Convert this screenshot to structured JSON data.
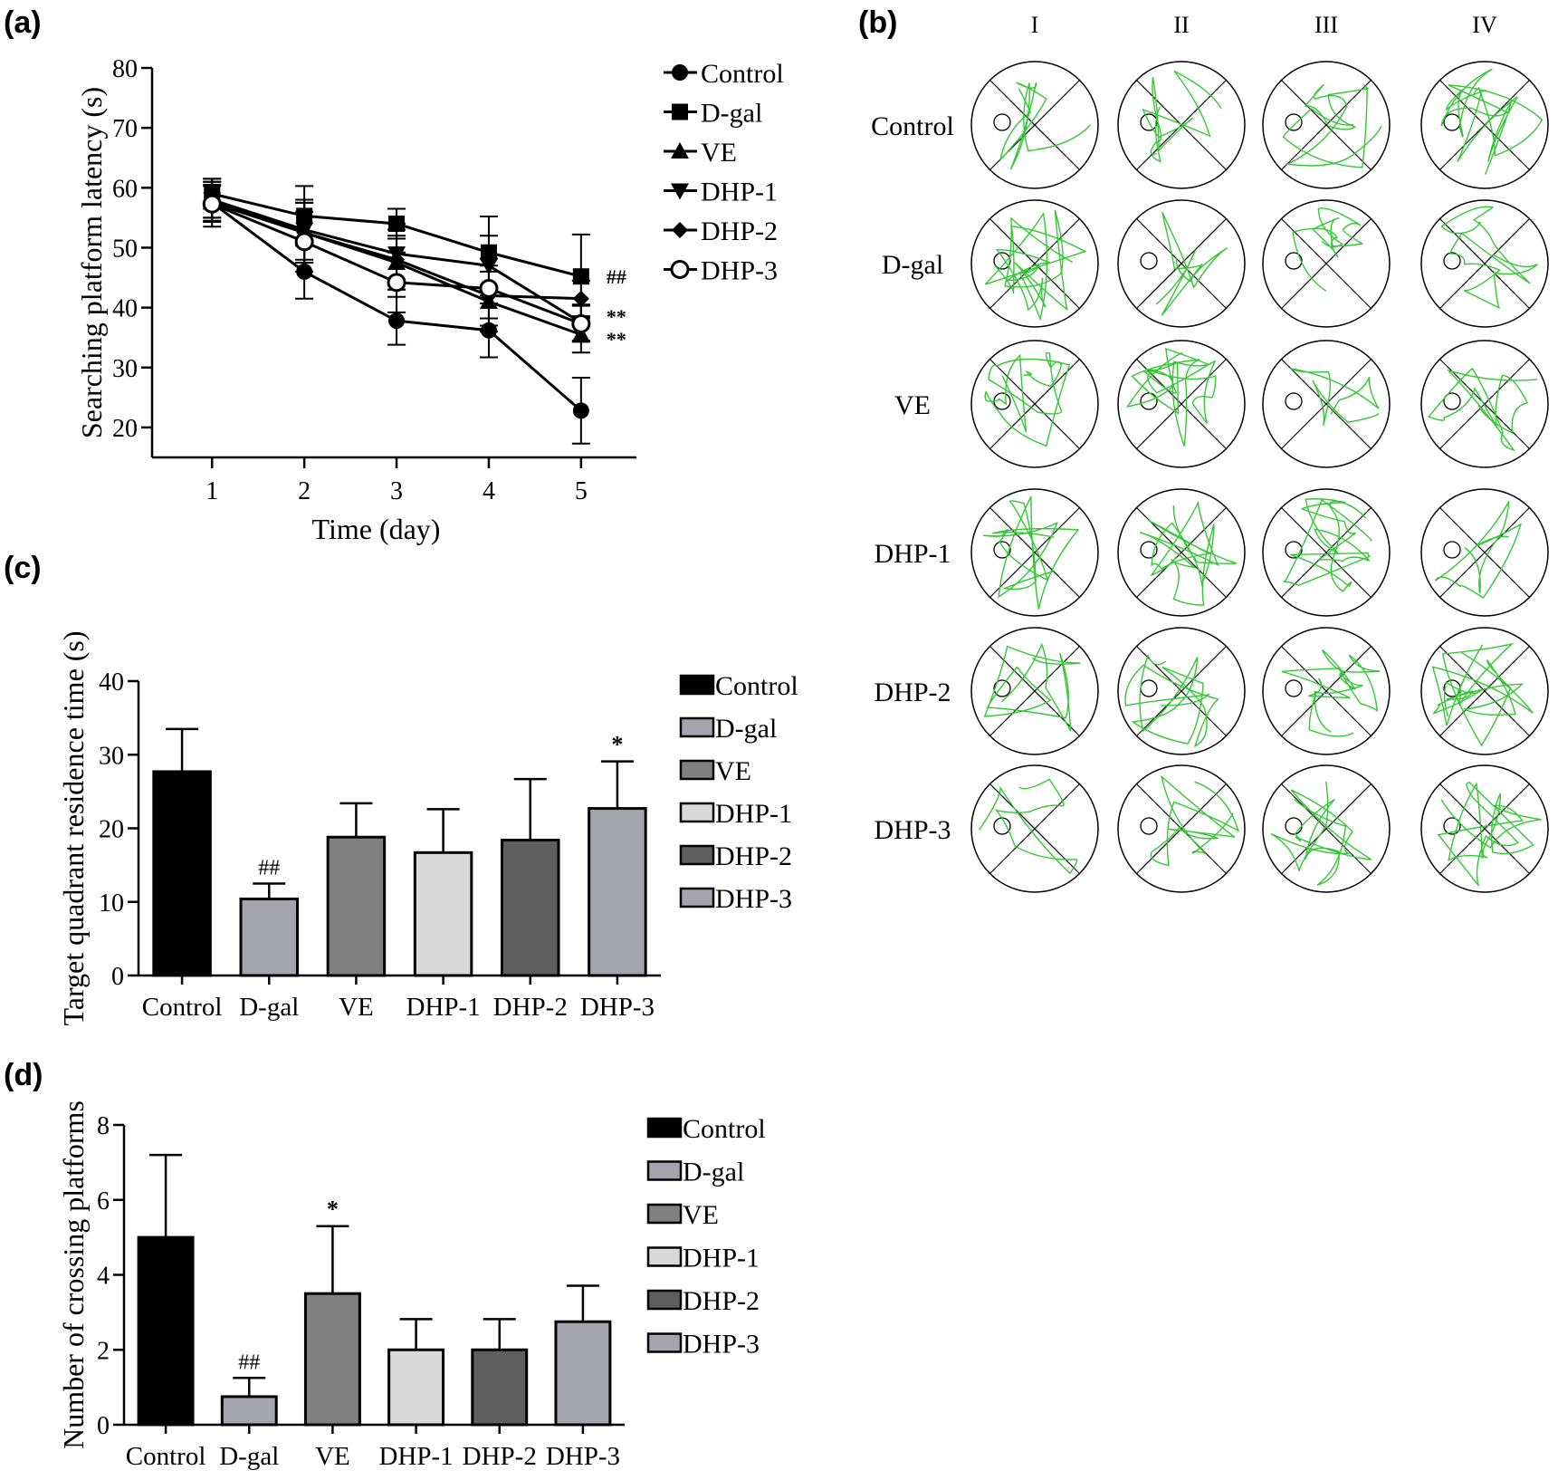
{
  "panels": {
    "a": {
      "label": "(a)"
    },
    "b": {
      "label": "(b)"
    },
    "c": {
      "label": "(c)"
    },
    "d": {
      "label": "(d)"
    }
  },
  "chart_data": [
    {
      "panel": "(a)",
      "type": "line",
      "title": "",
      "xlabel": "Time (day)",
      "ylabel": "Searching platform latency (s)",
      "x": [
        1,
        2,
        3,
        4,
        5
      ],
      "xlim": [
        0.35,
        5.6
      ],
      "ylim": [
        15,
        80
      ],
      "yticks": [
        20,
        30,
        40,
        50,
        60,
        70,
        80
      ],
      "grid": false,
      "legend_position": "right",
      "series": [
        {
          "name": "Control",
          "marker": "circle",
          "values": [
            57.5,
            46,
            37.8,
            36.2,
            22.8
          ],
          "errors": [
            4,
            4.5,
            4,
            4.5,
            5.5
          ]
        },
        {
          "name": "D-gal",
          "marker": "square",
          "values": [
            59,
            55.3,
            54,
            49.2,
            45.2
          ],
          "errors": [
            2.5,
            5,
            2.5,
            6,
            7
          ]
        },
        {
          "name": "VE",
          "marker": "triangle-up",
          "values": [
            58,
            52.5,
            47.5,
            41,
            35.5
          ],
          "errors": [
            3,
            5,
            4.5,
            5,
            3
          ]
        },
        {
          "name": "DHP-1",
          "marker": "triangle-down",
          "values": [
            58,
            53,
            49,
            47,
            37.5
          ],
          "errors": [
            3,
            5,
            5,
            5,
            3
          ]
        },
        {
          "name": "DHP-2",
          "marker": "diamond",
          "values": [
            57.5,
            52.5,
            48,
            42,
            41.5
          ],
          "errors": [
            3,
            5,
            5,
            5,
            3
          ]
        },
        {
          "name": "DHP-3",
          "marker": "open-circle",
          "values": [
            57.3,
            51,
            44.2,
            43.2,
            37.3
          ],
          "errors": [
            3,
            5,
            5,
            5,
            3
          ]
        }
      ],
      "annotations": [
        {
          "text": "##",
          "x": 5,
          "y": 45.2
        },
        {
          "text": "**",
          "x": 5,
          "y": 38
        },
        {
          "text": "**",
          "x": 5,
          "y": 36
        }
      ]
    },
    {
      "panel": "(c)",
      "type": "bar",
      "title": "",
      "xlabel": "",
      "ylabel": "Target quadrant residence time  (s)",
      "categories": [
        "Control",
        "D-gal",
        "VE",
        "DHP-1",
        "DHP-2",
        "DHP-3"
      ],
      "values": [
        27.7,
        10.4,
        18.8,
        16.7,
        18.4,
        22.7
      ],
      "errors": [
        5.8,
        2.1,
        4.6,
        5.9,
        8.3,
        6.4
      ],
      "colors": [
        "#000000",
        "#a4a4ac",
        "#808080",
        "#d9d9d9",
        "#5e5e5e",
        "#a4a4ac"
      ],
      "ylim": [
        0,
        40
      ],
      "yticks": [
        0,
        10,
        20,
        30,
        40
      ],
      "legend_position": "right",
      "annotations": [
        {
          "text": "##",
          "category": "D-gal"
        },
        {
          "text": "*",
          "category": "DHP-3"
        }
      ]
    },
    {
      "panel": "(d)",
      "type": "bar",
      "title": "",
      "xlabel": "",
      "ylabel": "Number of crossing platforms",
      "categories": [
        "Control",
        "D-gal",
        "VE",
        "DHP-1",
        "DHP-2",
        "DHP-3"
      ],
      "values": [
        5.0,
        0.75,
        3.5,
        2.0,
        2.0,
        2.75
      ],
      "errors": [
        2.2,
        0.5,
        1.8,
        0.82,
        0.82,
        0.96
      ],
      "colors": [
        "#000000",
        "#a4a4ac",
        "#808080",
        "#d9d9d9",
        "#5e5e5e",
        "#a4a4ac"
      ],
      "ylim": [
        0,
        8
      ],
      "yticks": [
        0,
        2,
        4,
        6,
        8
      ],
      "legend_position": "right",
      "annotations": [
        {
          "text": "##",
          "category": "D-gal"
        },
        {
          "text": "*",
          "category": "VE"
        }
      ]
    }
  ],
  "track_panel": {
    "columns": [
      "I",
      "II",
      "III",
      "IV"
    ],
    "rows": [
      "Control",
      "D-gal",
      "VE",
      "DHP-1",
      "DHP-2",
      "DHP-3"
    ],
    "track_color": "#33c833"
  }
}
